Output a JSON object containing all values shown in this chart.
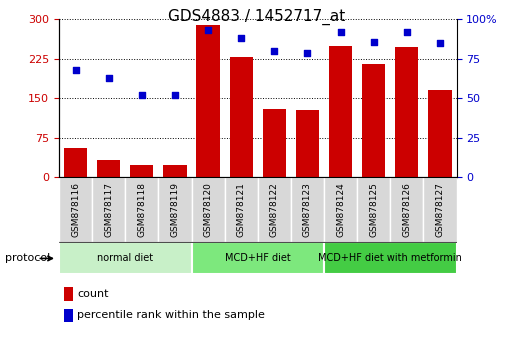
{
  "title": "GDS4883 / 1452717_at",
  "samples": [
    "GSM878116",
    "GSM878117",
    "GSM878118",
    "GSM878119",
    "GSM878120",
    "GSM878121",
    "GSM878122",
    "GSM878123",
    "GSM878124",
    "GSM878125",
    "GSM878126",
    "GSM878127"
  ],
  "counts": [
    55,
    32,
    22,
    22,
    290,
    228,
    130,
    128,
    250,
    215,
    248,
    165
  ],
  "percentile_ranks": [
    68,
    63,
    52,
    52,
    93,
    88,
    80,
    79,
    92,
    86,
    92,
    85
  ],
  "bar_color": "#cc0000",
  "dot_color": "#0000cc",
  "left_ylim": [
    0,
    300
  ],
  "right_ylim": [
    0,
    100
  ],
  "left_yticks": [
    0,
    75,
    150,
    225,
    300
  ],
  "right_yticks": [
    0,
    25,
    50,
    75,
    100
  ],
  "right_yticklabels": [
    "0",
    "25",
    "50",
    "75",
    "100%"
  ],
  "groups": [
    {
      "label": "normal diet",
      "start": 0,
      "end": 4,
      "color": "#c8f0c8"
    },
    {
      "label": "MCD+HF diet",
      "start": 4,
      "end": 8,
      "color": "#7de87d"
    },
    {
      "label": "MCD+HF diet with metformin",
      "start": 8,
      "end": 12,
      "color": "#44cc44"
    }
  ],
  "legend_items": [
    {
      "label": "count",
      "color": "#cc0000"
    },
    {
      "label": "percentile rank within the sample",
      "color": "#0000cc"
    }
  ],
  "protocol_label": "protocol",
  "sample_box_color": "#d8d8d8",
  "background_color": "#ffffff",
  "plot_bg_color": "#ffffff",
  "tick_label_color_left": "#cc0000",
  "tick_label_color_right": "#0000cc"
}
